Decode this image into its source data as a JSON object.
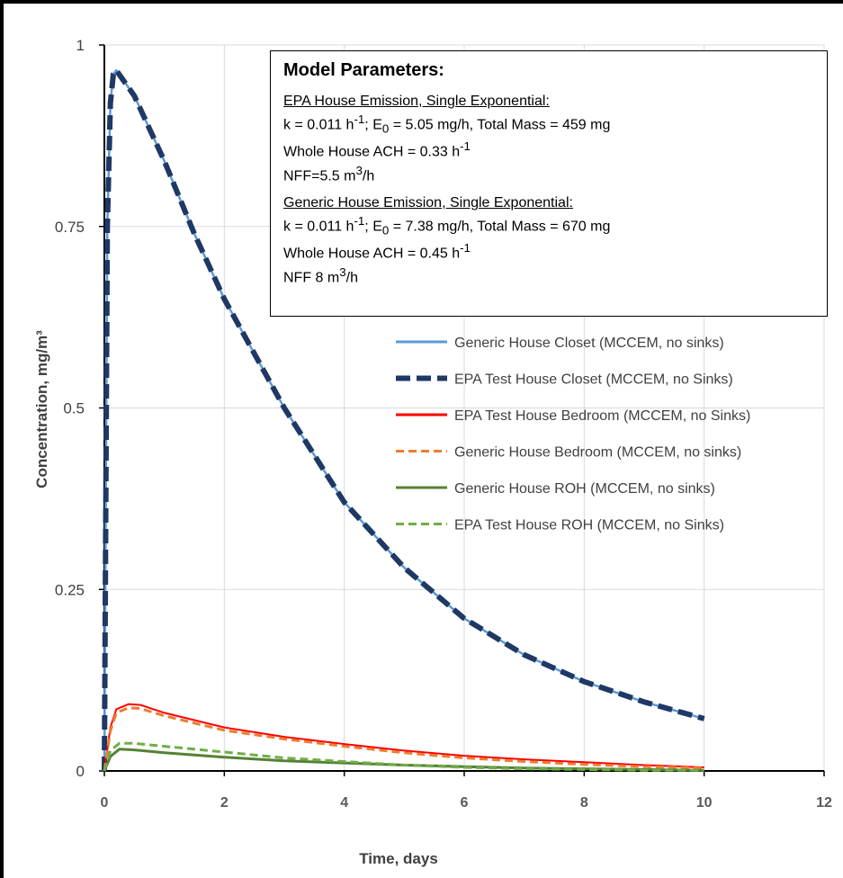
{
  "chart_data": {
    "type": "line",
    "xlabel": "Time, days",
    "ylabel": "Concentration, mg/m³",
    "xlim": [
      0,
      12
    ],
    "ylim": [
      0,
      1
    ],
    "xticks": [
      "0",
      "2",
      "4",
      "6",
      "8",
      "10",
      "12"
    ],
    "yticks": [
      "0",
      "0.25",
      "0.5",
      "0.75",
      "1"
    ],
    "grid": true,
    "legend_position": "right",
    "series": [
      {
        "name": "Generic House Closet (MCCEM, no sinks)",
        "color": "#5b9bd5",
        "dash": "solid",
        "points": [
          [
            0,
            0
          ],
          [
            0.05,
            0.75
          ],
          [
            0.1,
            0.92
          ],
          [
            0.15,
            0.96
          ],
          [
            0.2,
            0.965
          ],
          [
            0.5,
            0.93
          ],
          [
            1,
            0.84
          ],
          [
            1.5,
            0.74
          ],
          [
            2,
            0.65
          ],
          [
            3,
            0.5
          ],
          [
            4,
            0.37
          ],
          [
            5,
            0.28
          ],
          [
            6,
            0.21
          ],
          [
            7,
            0.16
          ],
          [
            8,
            0.123
          ],
          [
            9,
            0.095
          ],
          [
            10,
            0.072
          ]
        ]
      },
      {
        "name": "EPA Test House Closet (MCCEM, no Sinks)",
        "color": "#1f3864",
        "dash": "dashed",
        "points": [
          [
            0,
            0
          ],
          [
            0.05,
            0.75
          ],
          [
            0.1,
            0.92
          ],
          [
            0.15,
            0.96
          ],
          [
            0.2,
            0.965
          ],
          [
            0.5,
            0.93
          ],
          [
            1,
            0.84
          ],
          [
            1.5,
            0.74
          ],
          [
            2,
            0.65
          ],
          [
            3,
            0.5
          ],
          [
            4,
            0.37
          ],
          [
            5,
            0.28
          ],
          [
            6,
            0.21
          ],
          [
            7,
            0.16
          ],
          [
            8,
            0.123
          ],
          [
            9,
            0.095
          ],
          [
            10,
            0.072
          ]
        ]
      },
      {
        "name": "EPA Test House Bedroom (MCCEM, no Sinks)",
        "color": "#ff0000",
        "dash": "solid",
        "points": [
          [
            0,
            0
          ],
          [
            0.1,
            0.06
          ],
          [
            0.2,
            0.085
          ],
          [
            0.4,
            0.092
          ],
          [
            0.6,
            0.091
          ],
          [
            1,
            0.08
          ],
          [
            2,
            0.06
          ],
          [
            3,
            0.047
          ],
          [
            4,
            0.037
          ],
          [
            5,
            0.028
          ],
          [
            6,
            0.021
          ],
          [
            7,
            0.016
          ],
          [
            8,
            0.012
          ],
          [
            9,
            0.008
          ],
          [
            10,
            0.005
          ]
        ]
      },
      {
        "name": "Generic House Bedroom (MCCEM, no sinks)",
        "color": "#ed7d31",
        "dash": "dashed",
        "points": [
          [
            0,
            0
          ],
          [
            0.1,
            0.055
          ],
          [
            0.2,
            0.08
          ],
          [
            0.4,
            0.087
          ],
          [
            0.6,
            0.086
          ],
          [
            1,
            0.076
          ],
          [
            2,
            0.056
          ],
          [
            3,
            0.044
          ],
          [
            4,
            0.034
          ],
          [
            5,
            0.025
          ],
          [
            6,
            0.018
          ],
          [
            7,
            0.013
          ],
          [
            8,
            0.009
          ],
          [
            9,
            0.006
          ],
          [
            10,
            0.004
          ]
        ]
      },
      {
        "name": "Generic House ROH (MCCEM, no sinks)",
        "color": "#548235",
        "dash": "solid",
        "points": [
          [
            0,
            0
          ],
          [
            0.1,
            0.02
          ],
          [
            0.25,
            0.03
          ],
          [
            0.5,
            0.029
          ],
          [
            1,
            0.025
          ],
          [
            2,
            0.019
          ],
          [
            3,
            0.014
          ],
          [
            4,
            0.011
          ],
          [
            5,
            0.008
          ],
          [
            6,
            0.006
          ],
          [
            7,
            0.004
          ],
          [
            8,
            0.003
          ],
          [
            9,
            0.002
          ],
          [
            10,
            0.001
          ]
        ]
      },
      {
        "name": "EPA Test House ROH (MCCEM, no Sinks)",
        "color": "#70ad47",
        "dash": "dashed",
        "points": [
          [
            0,
            0
          ],
          [
            0.1,
            0.028
          ],
          [
            0.25,
            0.038
          ],
          [
            0.5,
            0.038
          ],
          [
            1,
            0.034
          ],
          [
            2,
            0.026
          ],
          [
            3,
            0.018
          ],
          [
            4,
            0.013
          ],
          [
            5,
            0.008
          ],
          [
            6,
            0.005
          ],
          [
            7,
            0.003
          ],
          [
            8,
            0.002
          ],
          [
            9,
            0.001
          ],
          [
            10,
            0.001
          ]
        ]
      }
    ]
  },
  "params": {
    "title": "Model Parameters:",
    "epa_header": "EPA House Emission,  Single Exponential:",
    "epa_k_pre": "k = 0.011 h",
    "epa_k_mid": "; E",
    "epa_k_post": " =  5.05 mg/h, Total Mass = 459 mg",
    "epa_ach": "Whole House ACH = 0.33 h",
    "epa_nff": "NFF=5.5 m",
    "generic_header": "Generic House Emission, Single Exponential:",
    "gen_k_pre": "k = 0.011 h",
    "gen_k_mid": "; E",
    "gen_k_post": " =  7.38 mg/h, Total Mass = 670 mg",
    "gen_ach": "Whole House ACH = 0.45 h",
    "gen_nff": "NFF 8 m",
    "sup_neg1": "-1",
    "sub_zero": "0",
    "sup_three": "3",
    "per_h": "/h"
  }
}
